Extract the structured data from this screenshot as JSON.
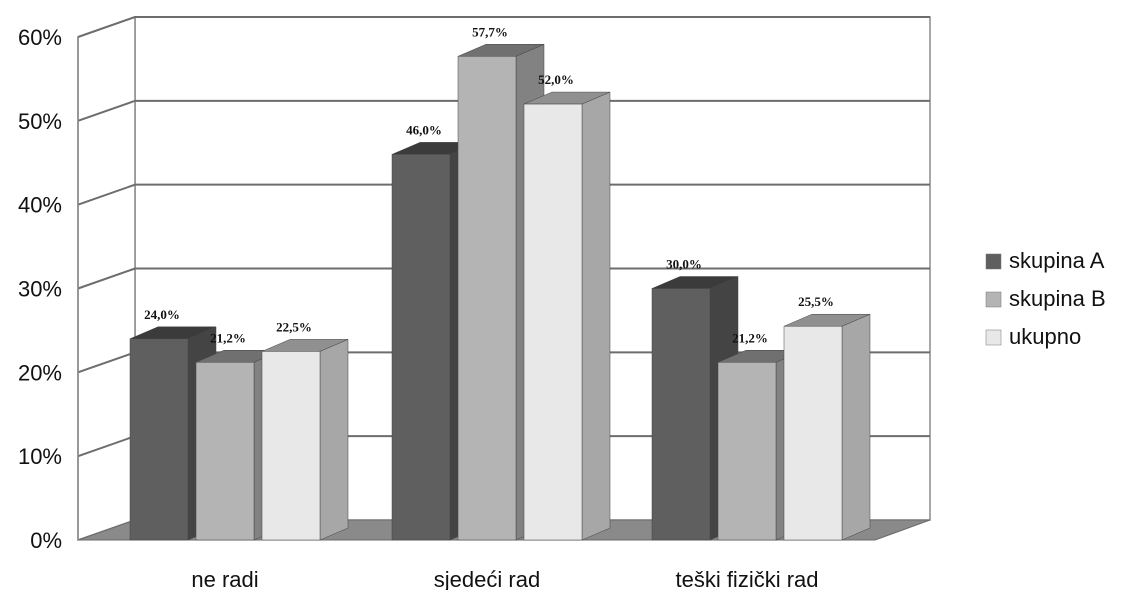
{
  "chart_data": {
    "type": "bar",
    "style": "3d-clustered",
    "categories": [
      "ne radi",
      "sjedeći rad",
      "teški fizički rad"
    ],
    "series": [
      {
        "name": "skupina A",
        "values": [
          24.0,
          46.0,
          30.0
        ],
        "labels": [
          "24,0%",
          "46,0%",
          "30,0%"
        ],
        "color": "#5f5f5f"
      },
      {
        "name": "skupina B",
        "values": [
          21.2,
          57.7,
          21.2
        ],
        "labels": [
          "21,2%",
          "57,7%",
          "21,2%"
        ],
        "color": "#b4b4b4"
      },
      {
        "name": "ukupno",
        "values": [
          22.5,
          52.0,
          25.5
        ],
        "labels": [
          "22,5%",
          "52,0%",
          "25,5%"
        ],
        "color": "#e8e8e8"
      }
    ],
    "y_ticks": [
      "0%",
      "10%",
      "20%",
      "30%",
      "40%",
      "50%",
      "60%"
    ],
    "ylim": [
      0,
      60
    ],
    "grid": true,
    "legend_position": "right",
    "title": "",
    "xlabel": "",
    "ylabel": ""
  }
}
